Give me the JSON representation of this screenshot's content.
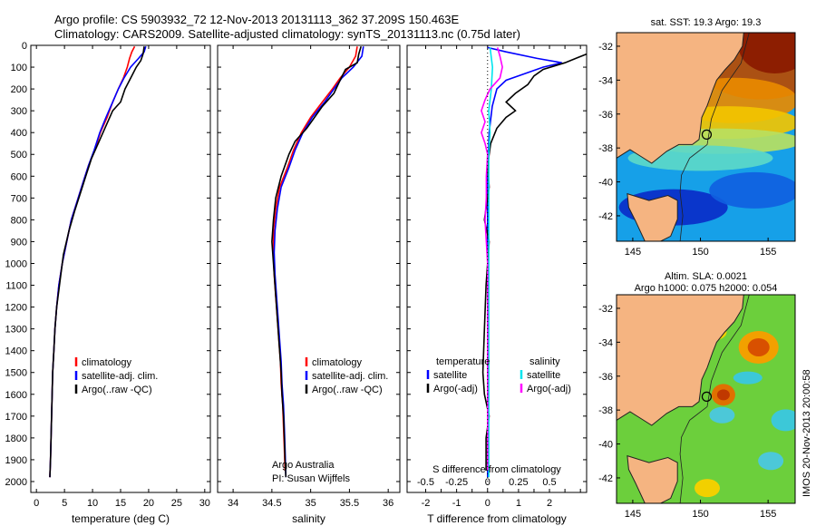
{
  "title": {
    "line1": "Argo profile: CS 5903932_72 12-Nov-2013 20131113_362 37.209S 150.463E",
    "line2": "Climatology: CARS2009. Satellite-adjusted climatology: synTS_20131113.nc (0.75d later)"
  },
  "colors": {
    "climatology": "#ff0000",
    "satellite": "#0000ff",
    "argo": "#000000",
    "sat_salinity": "#00e5ee",
    "argo_adj_salinity": "#ff00ff"
  },
  "chart_data": [
    {
      "id": "temperature",
      "type": "line",
      "xlabel": "temperature (deg C)",
      "ylabel": "",
      "xlim": [
        -1,
        31
      ],
      "ylim": [
        2050,
        0
      ],
      "xticks": [
        0,
        5,
        10,
        15,
        20,
        25,
        30
      ],
      "yticks": [
        0,
        100,
        200,
        300,
        400,
        500,
        600,
        700,
        800,
        900,
        1000,
        1100,
        1200,
        1300,
        1400,
        1500,
        1600,
        1700,
        1800,
        1900,
        2000
      ],
      "legend": [
        "climatology",
        "satellite-adj. clim.",
        "Argo(..raw -QC)"
      ],
      "series": [
        {
          "name": "climatology",
          "color": "#ff0000",
          "points": [
            [
              17.5,
              5
            ],
            [
              17,
              30
            ],
            [
              16.6,
              60
            ],
            [
              16.2,
              100
            ],
            [
              15.5,
              150
            ],
            [
              14.6,
              200
            ],
            [
              13.6,
              260
            ],
            [
              12.6,
              330
            ],
            [
              11.4,
              400
            ],
            [
              10.4,
              480
            ],
            [
              9.3,
              550
            ],
            [
              8.3,
              630
            ],
            [
              7.2,
              720
            ],
            [
              6.2,
              800
            ],
            [
              5.4,
              900
            ],
            [
              4.6,
              1000
            ],
            [
              4,
              1100
            ],
            [
              3.6,
              1200
            ],
            [
              3.3,
              1300
            ],
            [
              3.1,
              1400
            ],
            [
              2.9,
              1500
            ],
            [
              2.8,
              1600
            ],
            [
              2.7,
              1700
            ],
            [
              2.6,
              1800
            ],
            [
              2.5,
              1900
            ],
            [
              2.4,
              1980
            ]
          ]
        },
        {
          "name": "satellite-adj. clim.",
          "color": "#0000ff",
          "points": [
            [
              19.5,
              5
            ],
            [
              19.2,
              30
            ],
            [
              18.2,
              60
            ],
            [
              16.8,
              100
            ],
            [
              15.6,
              150
            ],
            [
              14.6,
              200
            ],
            [
              13.6,
              260
            ],
            [
              12.4,
              330
            ],
            [
              11.3,
              400
            ],
            [
              10.3,
              480
            ],
            [
              9.3,
              550
            ],
            [
              8.3,
              630
            ],
            [
              7.2,
              720
            ],
            [
              6.2,
              800
            ],
            [
              5.4,
              900
            ],
            [
              4.6,
              1000
            ],
            [
              4,
              1100
            ],
            [
              3.6,
              1200
            ],
            [
              3.3,
              1300
            ],
            [
              3.1,
              1400
            ],
            [
              2.9,
              1500
            ],
            [
              2.8,
              1600
            ],
            [
              2.7,
              1700
            ],
            [
              2.6,
              1800
            ],
            [
              2.5,
              1900
            ],
            [
              2.4,
              1980
            ]
          ]
        },
        {
          "name": "Argo(..raw -QC)",
          "color": "#000000",
          "points": [
            [
              19.2,
              5
            ],
            [
              19,
              40
            ],
            [
              18.6,
              70
            ],
            [
              17.8,
              100
            ],
            [
              16.8,
              150
            ],
            [
              15.8,
              200
            ],
            [
              15,
              260
            ],
            [
              13.6,
              300
            ],
            [
              12.2,
              380
            ],
            [
              11,
              450
            ],
            [
              9.8,
              520
            ],
            [
              8.8,
              600
            ],
            [
              7.8,
              680
            ],
            [
              6.8,
              760
            ],
            [
              5.8,
              850
            ],
            [
              4.8,
              960
            ],
            [
              4.1,
              1100
            ],
            [
              3.6,
              1200
            ],
            [
              3.3,
              1300
            ],
            [
              3.1,
              1400
            ],
            [
              2.9,
              1500
            ],
            [
              2.8,
              1600
            ],
            [
              2.7,
              1700
            ],
            [
              2.6,
              1800
            ],
            [
              2.5,
              1900
            ],
            [
              2.4,
              1980
            ]
          ]
        }
      ]
    },
    {
      "id": "salinity",
      "type": "line",
      "xlabel": "salinity",
      "xlim": [
        33.8,
        36.15
      ],
      "ylim": [
        2050,
        0
      ],
      "xticks": [
        34,
        34.5,
        35,
        35.5,
        36
      ],
      "legend": [
        "climatology",
        "satellite-adj. clim.",
        "Argo(..raw -QC)"
      ],
      "annotation": [
        "Argo Australia",
        "PI: Susan Wijffels"
      ],
      "series": [
        {
          "name": "climatology",
          "color": "#ff0000",
          "points": [
            [
              35.6,
              5
            ],
            [
              35.58,
              50
            ],
            [
              35.5,
              100
            ],
            [
              35.38,
              150
            ],
            [
              35.28,
              200
            ],
            [
              35.15,
              260
            ],
            [
              35,
              330
            ],
            [
              34.88,
              400
            ],
            [
              34.78,
              480
            ],
            [
              34.7,
              560
            ],
            [
              34.6,
              650
            ],
            [
              34.55,
              750
            ],
            [
              34.52,
              850
            ],
            [
              34.52,
              950
            ],
            [
              34.53,
              1050
            ],
            [
              34.55,
              1150
            ],
            [
              34.57,
              1250
            ],
            [
              34.59,
              1350
            ],
            [
              34.61,
              1450
            ],
            [
              34.62,
              1550
            ],
            [
              34.64,
              1650
            ],
            [
              34.65,
              1750
            ],
            [
              34.66,
              1850
            ],
            [
              34.67,
              1950
            ]
          ]
        },
        {
          "name": "satellite-adj. clim.",
          "color": "#0000ff",
          "points": [
            [
              35.68,
              5
            ],
            [
              35.66,
              50
            ],
            [
              35.55,
              100
            ],
            [
              35.4,
              150
            ],
            [
              35.3,
              200
            ],
            [
              35.18,
              260
            ],
            [
              35.02,
              330
            ],
            [
              34.9,
              400
            ],
            [
              34.8,
              480
            ],
            [
              34.72,
              560
            ],
            [
              34.62,
              650
            ],
            [
              34.57,
              750
            ],
            [
              34.54,
              850
            ],
            [
              34.53,
              950
            ],
            [
              34.54,
              1050
            ],
            [
              34.56,
              1150
            ],
            [
              34.58,
              1250
            ],
            [
              34.6,
              1350
            ],
            [
              34.62,
              1450
            ],
            [
              34.63,
              1550
            ],
            [
              34.65,
              1650
            ],
            [
              34.66,
              1750
            ],
            [
              34.67,
              1850
            ],
            [
              34.68,
              1980
            ]
          ]
        },
        {
          "name": "Argo(..raw -QC)",
          "color": "#000000",
          "points": [
            [
              35.65,
              5
            ],
            [
              35.62,
              40
            ],
            [
              35.6,
              80
            ],
            [
              35.45,
              110
            ],
            [
              35.38,
              160
            ],
            [
              35.3,
              220
            ],
            [
              35.15,
              280
            ],
            [
              35.05,
              330
            ],
            [
              34.95,
              380
            ],
            [
              34.8,
              440
            ],
            [
              34.72,
              500
            ],
            [
              34.62,
              600
            ],
            [
              34.55,
              700
            ],
            [
              34.52,
              800
            ],
            [
              34.5,
              900
            ],
            [
              34.52,
              1000
            ],
            [
              34.54,
              1100
            ],
            [
              34.56,
              1200
            ],
            [
              34.58,
              1300
            ],
            [
              34.6,
              1400
            ],
            [
              34.62,
              1500
            ],
            [
              34.63,
              1600
            ],
            [
              34.65,
              1700
            ],
            [
              34.66,
              1800
            ],
            [
              34.67,
              1900
            ],
            [
              34.68,
              1980
            ]
          ]
        }
      ]
    },
    {
      "id": "difference",
      "type": "line",
      "xlabel": "T difference from climatology",
      "xlabel_top": "S difference from climatology",
      "xlim_T": [
        -2.6,
        3.2
      ],
      "xticks_T": [
        -2,
        -1.5,
        -1,
        -0.5,
        0,
        0.5,
        1,
        1.5,
        2,
        2.5,
        3
      ],
      "xticklabels_T": [
        "-2",
        "",
        "-1",
        "",
        "0",
        "",
        "1",
        "",
        "2",
        "",
        ""
      ],
      "xticks_S": [
        -0.5,
        -0.25,
        0,
        0.25,
        0.5
      ],
      "xticklabels_S": [
        "-0.5",
        "-0.25",
        "0",
        "0.25",
        "0.5"
      ],
      "ylim": [
        2050,
        0
      ],
      "legend_temperature": [
        "temperature",
        "satellite",
        "Argo(-adj)"
      ],
      "legend_salinity": [
        "salinity",
        "satellite",
        "Argo(-adj)"
      ],
      "series": [
        {
          "name": "T satellite",
          "color": "#0000ff",
          "points": [
            [
              0,
              10
            ],
            [
              0.6,
              30
            ],
            [
              1.6,
              60
            ],
            [
              2.4,
              80
            ],
            [
              1.8,
              100
            ],
            [
              1.2,
              130
            ],
            [
              0.6,
              160
            ],
            [
              0.3,
              200
            ],
            [
              0.15,
              280
            ],
            [
              0.05,
              400
            ],
            [
              0,
              600
            ],
            [
              0,
              1000
            ],
            [
              0,
              1500
            ],
            [
              0,
              1980
            ]
          ]
        },
        {
          "name": "T Argo(-adj)",
          "color": "#000000",
          "points": [
            [
              3.4,
              10
            ],
            [
              3.2,
              40
            ],
            [
              2.5,
              80
            ],
            [
              1.8,
              110
            ],
            [
              1.5,
              140
            ],
            [
              1.3,
              180
            ],
            [
              0.9,
              220
            ],
            [
              0.6,
              260
            ],
            [
              0.9,
              300
            ],
            [
              0.6,
              330
            ],
            [
              0.3,
              380
            ],
            [
              0.1,
              450
            ],
            [
              0,
              550
            ],
            [
              0.05,
              650
            ],
            [
              -0.1,
              800
            ],
            [
              0.05,
              900
            ],
            [
              -0.05,
              1100
            ],
            [
              -0.1,
              1300
            ],
            [
              -0.15,
              1500
            ],
            [
              -0.1,
              1600
            ],
            [
              0.05,
              1700
            ],
            [
              -0.05,
              1800
            ],
            [
              -0.05,
              1950
            ]
          ]
        },
        {
          "name": "S satellite",
          "color": "#00e5ee",
          "points": [
            [
              0.02,
              10
            ],
            [
              0.04,
              100
            ],
            [
              0.03,
              200
            ],
            [
              0.01,
              300
            ],
            [
              0.02,
              400
            ],
            [
              0.01,
              500
            ],
            [
              0.01,
              700
            ],
            [
              0.01,
              1000
            ],
            [
              0.01,
              1500
            ],
            [
              0.01,
              1980
            ]
          ]
        },
        {
          "name": "S Argo(-adj)",
          "color": "#ff00ff",
          "points": [
            [
              0.08,
              10
            ],
            [
              0.1,
              50
            ],
            [
              0.12,
              100
            ],
            [
              0.1,
              150
            ],
            [
              0.02,
              200
            ],
            [
              -0.02,
              250
            ],
            [
              -0.05,
              300
            ],
            [
              -0.02,
              350
            ],
            [
              -0.05,
              400
            ],
            [
              -0.02,
              450
            ],
            [
              0,
              500
            ],
            [
              -0.01,
              600
            ],
            [
              -0.01,
              700
            ],
            [
              -0.02,
              800
            ],
            [
              -0.01,
              900
            ],
            [
              0,
              1000
            ],
            [
              0,
              1200
            ],
            [
              0,
              1400
            ],
            [
              0,
              1600
            ],
            [
              0,
              1800
            ],
            [
              0,
              1950
            ]
          ]
        }
      ]
    }
  ],
  "maps": [
    {
      "id": "sst",
      "title": "sat. SST: 19.3 Argo: 19.3",
      "title2": "",
      "yticks": [
        "-32",
        "-34",
        "-36",
        "-38",
        "-40",
        "-42"
      ],
      "xticks": [
        "145",
        "150",
        "155"
      ]
    },
    {
      "id": "sla",
      "title": "Altim. SLA: 0.0021",
      "title2": "Argo h1000: 0.075 h2000: 0.054",
      "yticks": [
        "-32",
        "-34",
        "-36",
        "-38",
        "-40",
        "-42"
      ],
      "xticks": [
        "145",
        "150",
        "155"
      ]
    }
  ],
  "watermark": "IMOS 20-Nov-2013 20:00:58"
}
